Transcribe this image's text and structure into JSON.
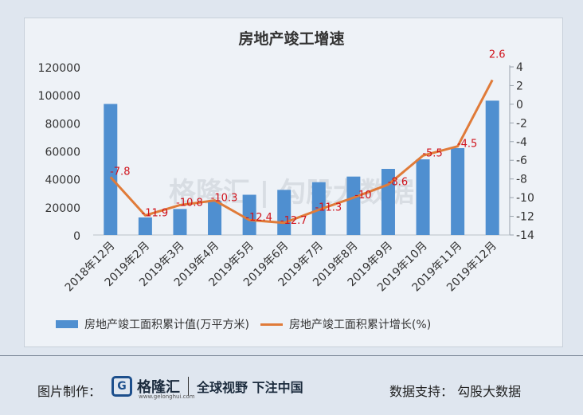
{
  "chart_data": {
    "type": "bar+line",
    "title": "房地产竣工增速",
    "categories": [
      "2018年12月",
      "2019年2月",
      "2019年3月",
      "2019年4月",
      "2019年5月",
      "2019年6月",
      "2019年7月",
      "2019年8月",
      "2019年9月",
      "2019年10月",
      "2019年11月",
      "2019年12月"
    ],
    "series": [
      {
        "name": "房地产竣工面积累计值(万平方米)",
        "kind": "bar",
        "axis": "left",
        "color": "#4f8fd0",
        "values": [
          93550,
          12530,
          18560,
          24170,
          28720,
          32200,
          37700,
          41700,
          47200,
          54000,
          62000,
          95900
        ]
      },
      {
        "name": "房地产竣工面积累计增长(%)",
        "kind": "line",
        "axis": "right",
        "color": "#e07b39",
        "values": [
          -7.8,
          -11.9,
          -10.8,
          -10.3,
          -12.4,
          -12.7,
          -11.3,
          -10,
          -8.6,
          -5.5,
          -4.5,
          2.6
        ],
        "labels": [
          "-7.8",
          "-11.9",
          "-10.8",
          "-10.3",
          "-12.4",
          "-12.7",
          "-11.3",
          "-10",
          "-8.6",
          "-5.5",
          "-4.5",
          "2.6"
        ]
      }
    ],
    "y_left": {
      "min": 0,
      "max": 120000,
      "ticks": [
        "0",
        "20000",
        "40000",
        "60000",
        "80000",
        "100000",
        "120000"
      ]
    },
    "y_right": {
      "min": -14,
      "max": 4,
      "ticks": [
        "-14",
        "-12",
        "-10",
        "-8",
        "-6",
        "-4",
        "-2",
        "0",
        "2",
        "4"
      ]
    },
    "label_color": "#d0121b",
    "legend_position": "bottom",
    "watermark": "格隆汇 | 勾股大数据"
  },
  "legend": {
    "bar_label": "房地产竣工面积累计值(万平方米)",
    "line_label": "房地产竣工面积累计增长(%)"
  },
  "footer": {
    "credit": "图片制作：",
    "brand": "格隆汇",
    "brand_domain": "www.gelonghui.com",
    "slogan": "全球视野 下注中国",
    "source": "数据支持：  勾股大数据"
  }
}
